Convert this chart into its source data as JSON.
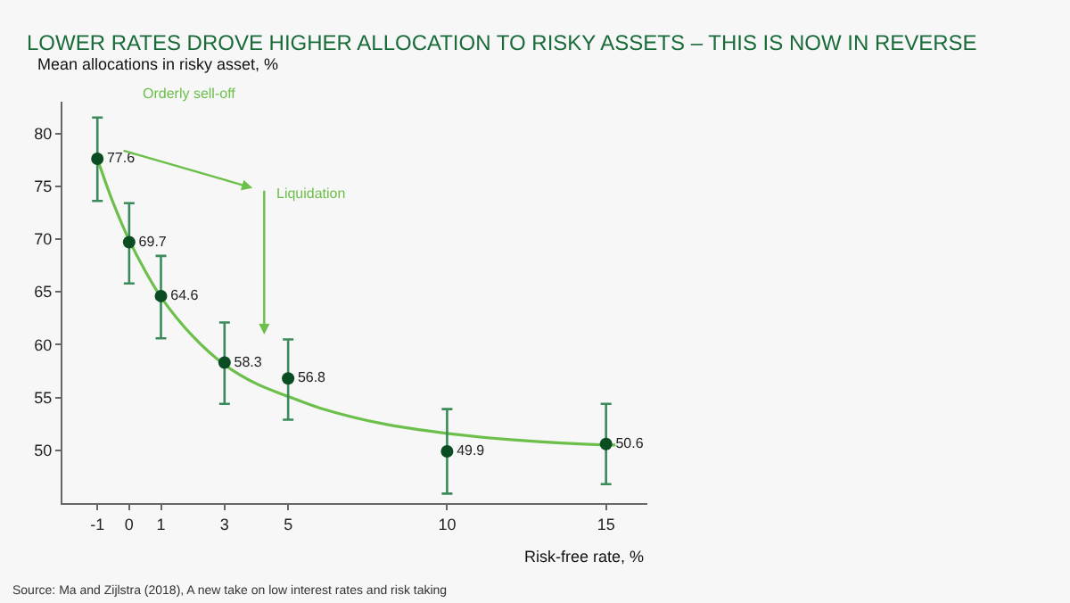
{
  "chart_data": {
    "type": "scatter",
    "title": "LOWER RATES DROVE HIGHER ALLOCATION TO RISKY ASSETS – THIS IS NOW IN REVERSE",
    "xlabel": "Risk-free rate, %",
    "ylabel": "Mean allocations in risky asset, %",
    "series": [
      {
        "type": "line",
        "color": "#6cbf4a",
        "x": [
          -1,
          -0.5,
          0,
          0.5,
          1,
          2,
          3,
          4,
          5,
          6,
          8,
          10,
          12,
          15,
          15.3
        ],
        "values": [
          77.6,
          73.4,
          69.9,
          67,
          64.5,
          60.8,
          58.1,
          56.3,
          55.1,
          54,
          52.5,
          51.6,
          51,
          50.5,
          50.5
        ]
      },
      {
        "color": "#0b4d22",
        "marker": "circle",
        "x": [
          -1,
          0,
          1,
          3,
          5,
          10,
          15
        ],
        "values": [
          77.6,
          69.7,
          64.6,
          58.3,
          56.8,
          49.9,
          50.6
        ],
        "errors": [
          [
            73.6,
            81.5
          ],
          [
            65.8,
            73.4
          ],
          [
            60.6,
            68.4
          ],
          [
            54.4,
            62.1
          ],
          [
            52.9,
            60.5
          ],
          [
            45.9,
            53.9
          ],
          [
            46.8,
            54.4
          ]
        ],
        "data_labels": true
      }
    ],
    "xlim": [
      -2.1,
      16.3
    ],
    "xticks": [
      -1,
      0,
      1,
      3,
      5,
      10,
      15
    ],
    "ylim": [
      45,
      83
    ],
    "yticks": [
      50,
      55,
      60,
      65,
      70,
      75,
      80
    ],
    "grid": false,
    "legend": false,
    "annotations": [
      "Orderly sell-off",
      "Liquidation",
      "Source: Ma and Zijlstra (2018), A new take on low interest rates and risk taking"
    ]
  }
}
